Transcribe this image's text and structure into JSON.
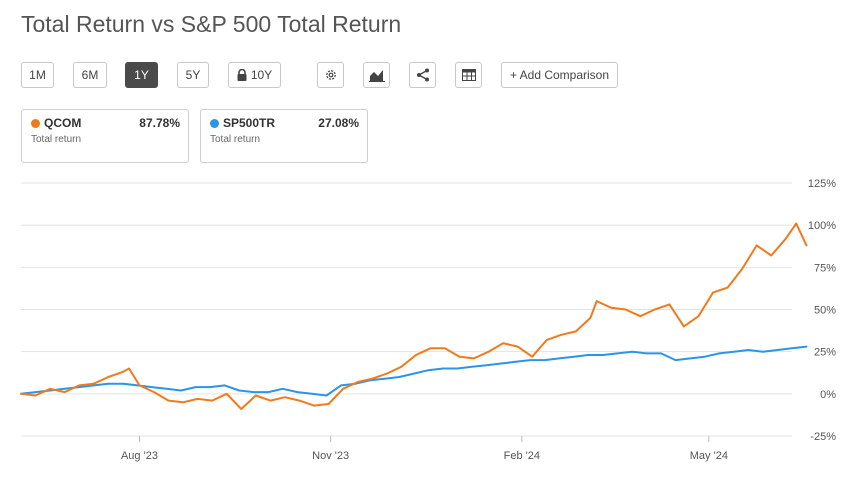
{
  "page": {
    "title": "Total Return vs S&P 500 Total Return"
  },
  "toolbar": {
    "periods": [
      "1M",
      "6M",
      "1Y",
      "5Y",
      "10Y"
    ],
    "active_period": "1Y",
    "add_comparison": "+ Add Comparison",
    "icons": [
      "gear-icon",
      "chart-type-icon",
      "share-icon",
      "table-icon",
      "lock-icon"
    ]
  },
  "legend": [
    {
      "ticker": "QCOM",
      "value": "87.78%",
      "sub": "Total return",
      "color": "#f07a1c"
    },
    {
      "ticker": "SP500TR",
      "value": "27.08%",
      "sub": "Total return",
      "color": "#2b95e6"
    }
  ],
  "chart_data": {
    "type": "line",
    "title": "Total Return vs S&P 500 Total Return",
    "xlabel": "",
    "ylabel": "",
    "ylim": [
      -25,
      125
    ],
    "yticks": [
      -25,
      0,
      25,
      50,
      75,
      100,
      125
    ],
    "ytick_labels": [
      "-25%",
      "0%",
      "25%",
      "50%",
      "75%",
      "100%",
      "125%"
    ],
    "xlim": [
      "2023-06-05",
      "2024-06-10"
    ],
    "xticks": [
      {
        "date": "2023-08-01",
        "label": "Aug '23"
      },
      {
        "date": "2023-11-01",
        "label": "Nov '23"
      },
      {
        "date": "2024-02-01",
        "label": "Feb '24"
      },
      {
        "date": "2024-05-01",
        "label": "May '24"
      }
    ],
    "grid": true,
    "series": [
      {
        "name": "QCOM",
        "color": "#f07a1c",
        "points": [
          [
            "2023-06-05",
            0
          ],
          [
            "2023-06-12",
            -1
          ],
          [
            "2023-06-19",
            3
          ],
          [
            "2023-06-26",
            1
          ],
          [
            "2023-07-03",
            5
          ],
          [
            "2023-07-10",
            6
          ],
          [
            "2023-07-17",
            10
          ],
          [
            "2023-07-24",
            13
          ],
          [
            "2023-07-27",
            15
          ],
          [
            "2023-08-01",
            5
          ],
          [
            "2023-08-08",
            1
          ],
          [
            "2023-08-15",
            -4
          ],
          [
            "2023-08-22",
            -5
          ],
          [
            "2023-08-29",
            -3
          ],
          [
            "2023-09-05",
            -4
          ],
          [
            "2023-09-12",
            0
          ],
          [
            "2023-09-19",
            -9
          ],
          [
            "2023-09-26",
            -1
          ],
          [
            "2023-10-03",
            -4
          ],
          [
            "2023-10-10",
            -2
          ],
          [
            "2023-10-17",
            -4
          ],
          [
            "2023-10-24",
            -7
          ],
          [
            "2023-10-31",
            -6
          ],
          [
            "2023-11-07",
            3
          ],
          [
            "2023-11-14",
            7
          ],
          [
            "2023-11-21",
            9
          ],
          [
            "2023-11-28",
            12
          ],
          [
            "2023-12-05",
            16
          ],
          [
            "2023-12-12",
            23
          ],
          [
            "2023-12-19",
            27
          ],
          [
            "2023-12-26",
            27
          ],
          [
            "2024-01-02",
            22
          ],
          [
            "2024-01-09",
            21
          ],
          [
            "2024-01-16",
            25
          ],
          [
            "2024-01-23",
            30
          ],
          [
            "2024-01-30",
            28
          ],
          [
            "2024-02-06",
            22
          ],
          [
            "2024-02-13",
            32
          ],
          [
            "2024-02-20",
            35
          ],
          [
            "2024-02-27",
            37
          ],
          [
            "2024-03-05",
            45
          ],
          [
            "2024-03-08",
            55
          ],
          [
            "2024-03-15",
            51
          ],
          [
            "2024-03-22",
            50
          ],
          [
            "2024-03-29",
            46
          ],
          [
            "2024-04-05",
            50
          ],
          [
            "2024-04-12",
            53
          ],
          [
            "2024-04-19",
            40
          ],
          [
            "2024-04-26",
            46
          ],
          [
            "2024-05-03",
            60
          ],
          [
            "2024-05-10",
            63
          ],
          [
            "2024-05-17",
            74
          ],
          [
            "2024-05-24",
            88
          ],
          [
            "2024-05-31",
            82
          ],
          [
            "2024-06-07",
            92
          ],
          [
            "2024-06-12",
            101
          ],
          [
            "2024-06-17",
            88
          ]
        ]
      },
      {
        "name": "SP500TR",
        "color": "#2b95e6",
        "points": [
          [
            "2023-06-05",
            0
          ],
          [
            "2023-06-12",
            1
          ],
          [
            "2023-06-19",
            2
          ],
          [
            "2023-06-26",
            3
          ],
          [
            "2023-07-03",
            4
          ],
          [
            "2023-07-10",
            5
          ],
          [
            "2023-07-17",
            6
          ],
          [
            "2023-07-24",
            6
          ],
          [
            "2023-07-31",
            5
          ],
          [
            "2023-08-07",
            4
          ],
          [
            "2023-08-14",
            3
          ],
          [
            "2023-08-21",
            2
          ],
          [
            "2023-08-28",
            4
          ],
          [
            "2023-09-04",
            4
          ],
          [
            "2023-09-11",
            5
          ],
          [
            "2023-09-18",
            2
          ],
          [
            "2023-09-25",
            1
          ],
          [
            "2023-10-02",
            1
          ],
          [
            "2023-10-09",
            3
          ],
          [
            "2023-10-16",
            1
          ],
          [
            "2023-10-23",
            0
          ],
          [
            "2023-10-30",
            -1
          ],
          [
            "2023-11-06",
            5
          ],
          [
            "2023-11-13",
            6
          ],
          [
            "2023-11-20",
            8
          ],
          [
            "2023-11-27",
            9
          ],
          [
            "2023-12-04",
            10
          ],
          [
            "2023-12-11",
            12
          ],
          [
            "2023-12-18",
            14
          ],
          [
            "2023-12-25",
            15
          ],
          [
            "2024-01-01",
            15
          ],
          [
            "2024-01-08",
            16
          ],
          [
            "2024-01-15",
            17
          ],
          [
            "2024-01-22",
            18
          ],
          [
            "2024-01-29",
            19
          ],
          [
            "2024-02-05",
            20
          ],
          [
            "2024-02-12",
            20
          ],
          [
            "2024-02-19",
            21
          ],
          [
            "2024-02-26",
            22
          ],
          [
            "2024-03-04",
            23
          ],
          [
            "2024-03-11",
            23
          ],
          [
            "2024-03-18",
            24
          ],
          [
            "2024-03-25",
            25
          ],
          [
            "2024-04-01",
            24
          ],
          [
            "2024-04-08",
            24
          ],
          [
            "2024-04-15",
            20
          ],
          [
            "2024-04-22",
            21
          ],
          [
            "2024-04-29",
            22
          ],
          [
            "2024-05-06",
            24
          ],
          [
            "2024-05-13",
            25
          ],
          [
            "2024-05-20",
            26
          ],
          [
            "2024-05-27",
            25
          ],
          [
            "2024-06-03",
            26
          ],
          [
            "2024-06-10",
            27
          ],
          [
            "2024-06-17",
            28
          ]
        ]
      }
    ]
  }
}
